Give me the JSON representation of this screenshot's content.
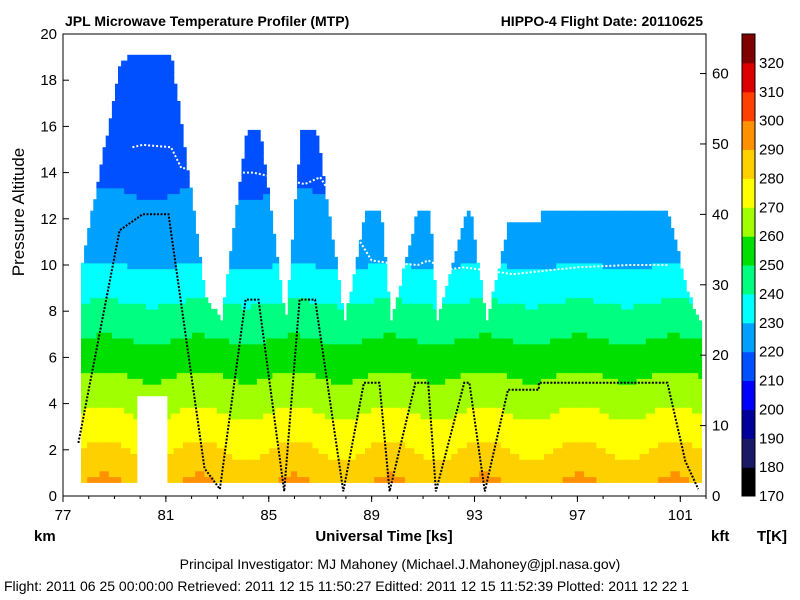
{
  "chart_data": {
    "type": "heatmap",
    "title": "JPL Microwave Temperature Profiler (MTP)",
    "title_right": "HIPPO-4  Flight Date: 20110625",
    "xlabel": "Universal Time [ks]",
    "ylabel": "Pressure Altitude",
    "y_unit": "km",
    "y2_unit": "kft",
    "colorbar_unit": "T[K]",
    "xlim": [
      77,
      102
    ],
    "ylim": [
      0,
      20
    ],
    "x_ticks": [
      "77",
      "81",
      "85",
      "89",
      "93",
      "97",
      "101"
    ],
    "x_tick_values": [
      77,
      81,
      85,
      89,
      93,
      97,
      101
    ],
    "y_ticks": [
      "0",
      "2",
      "4",
      "6",
      "8",
      "10",
      "12",
      "14",
      "16",
      "18",
      "20"
    ],
    "y_tick_values": [
      0,
      2,
      4,
      6,
      8,
      10,
      12,
      14,
      16,
      18,
      20
    ],
    "y2_ticks": [
      "0",
      "10",
      "20",
      "30",
      "40",
      "50",
      "60"
    ],
    "y2_tick_values": [
      0,
      10,
      20,
      30,
      40,
      50,
      60
    ],
    "colorbar_ticks": [
      "170",
      "180",
      "190",
      "200",
      "210",
      "220",
      "230",
      "240",
      "250",
      "260",
      "270",
      "280",
      "290",
      "300",
      "310",
      "320"
    ],
    "colorbar_values": [
      170,
      180,
      190,
      200,
      210,
      220,
      230,
      240,
      250,
      260,
      270,
      280,
      290,
      300,
      310,
      320
    ],
    "colorbar_colors": [
      "#000000",
      "#1a1a66",
      "#00009a",
      "#0000ff",
      "#0050ff",
      "#00a0ff",
      "#00ffff",
      "#00ff80",
      "#00e000",
      "#a0ff00",
      "#ffff00",
      "#ffd000",
      "#ff9000",
      "#ff4000",
      "#dd0000",
      "#800000"
    ],
    "flight_altitude": {
      "x": [
        77.6,
        79.2,
        80.1,
        81.1,
        82.5,
        83.1,
        84.1,
        84.6,
        85.6,
        86.2,
        86.8,
        87.9,
        88.7,
        89.3,
        89.7,
        90.7,
        91.2,
        91.5,
        92.6,
        92.8,
        93.4,
        94.3,
        94.7,
        95.5,
        95.5,
        100.5,
        101.2,
        101.7
      ],
      "y": [
        2.3,
        11.5,
        12.2,
        12.2,
        1.2,
        0.3,
        8.5,
        8.5,
        0.2,
        8.5,
        8.5,
        0.2,
        4.9,
        4.9,
        0.2,
        4.9,
        4.9,
        0.2,
        4.9,
        4.9,
        0.2,
        4.6,
        4.6,
        4.6,
        4.9,
        4.9,
        1.5,
        0.3
      ]
    },
    "tropopause": {
      "x": [
        79.7,
        80.1,
        81.2,
        81.6,
        83.8,
        84.4,
        86.4,
        87.0,
        89.0,
        89.6,
        90.8,
        91.2,
        91.9,
        92.6,
        94.5,
        95.3,
        97.0,
        99.0,
        100.5
      ],
      "y": [
        15.1,
        15.2,
        15.1,
        14.2,
        14.0,
        14.0,
        13.5,
        13.8,
        10.2,
        10.1,
        10.0,
        10.2,
        9.8,
        9.9,
        9.6,
        9.7,
        9.9,
        10.0,
        10.0
      ]
    },
    "grid": false,
    "legend": "colorbar-right"
  },
  "footer": {
    "line1": "Principal Investigator: MJ Mahoney (Michael.J.Mahoney@jpl.nasa.gov)",
    "line2": "Flight: 2011 06 25 00:00:00   Retrieved: 2011 12 15 11:50:27   Editted: 2011 12 15 11:52:39   Plotted: 2011 12 22 1"
  }
}
